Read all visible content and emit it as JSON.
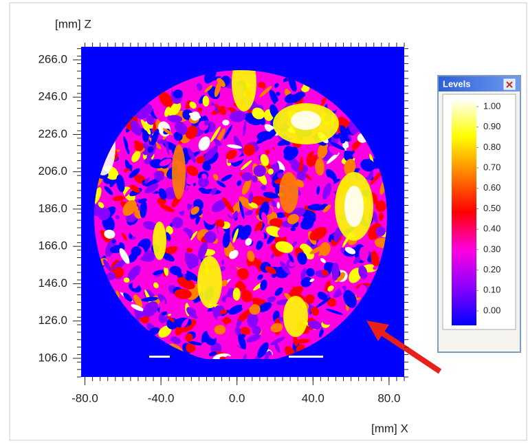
{
  "chart_data": {
    "type": "heatmap",
    "x_label": "[mm] X",
    "y_label": "[mm] Z",
    "xlim": [
      -82,
      88
    ],
    "ylim": [
      96,
      273
    ],
    "xticks": [
      {
        "value": -80,
        "label": "-80.0"
      },
      {
        "value": -40,
        "label": "-40.0"
      },
      {
        "value": 0,
        "label": "0.0"
      },
      {
        "value": 40,
        "label": "40.0"
      },
      {
        "value": 80,
        "label": "80.0"
      }
    ],
    "yticks": [
      {
        "value": 106,
        "label": "106.0"
      },
      {
        "value": 126,
        "label": "126.0"
      },
      {
        "value": 146,
        "label": "146.0"
      },
      {
        "value": 166,
        "label": "166.0"
      },
      {
        "value": 186,
        "label": "186.0"
      },
      {
        "value": 206,
        "label": "206.0"
      },
      {
        "value": 226,
        "label": "226.0"
      },
      {
        "value": 246,
        "label": "246.0"
      },
      {
        "value": 266,
        "label": "266.0"
      }
    ],
    "background_color": "#0000ff",
    "colorbar": {
      "title": "Levels",
      "ticks": [
        {
          "value": 1,
          "label": "1.00"
        },
        {
          "value": 0.9,
          "label": "0.90"
        },
        {
          "value": 0.8,
          "label": "0.80"
        },
        {
          "value": 0.7,
          "label": "0.70"
        },
        {
          "value": 0.6,
          "label": "0.60"
        },
        {
          "value": 0.5,
          "label": "0.50"
        },
        {
          "value": 0.4,
          "label": "0.40"
        },
        {
          "value": 0.3,
          "label": "0.30"
        },
        {
          "value": 0.2,
          "label": "0.20"
        },
        {
          "value": 0.1,
          "label": "0.10"
        },
        {
          "value": 0,
          "label": "0.00"
        }
      ],
      "colorscale": [
        "#0000ff",
        "#8a00ff",
        "#ff00e0",
        "#ff0000",
        "#ff8000",
        "#ffff00",
        "#ffffff"
      ]
    }
  }
}
